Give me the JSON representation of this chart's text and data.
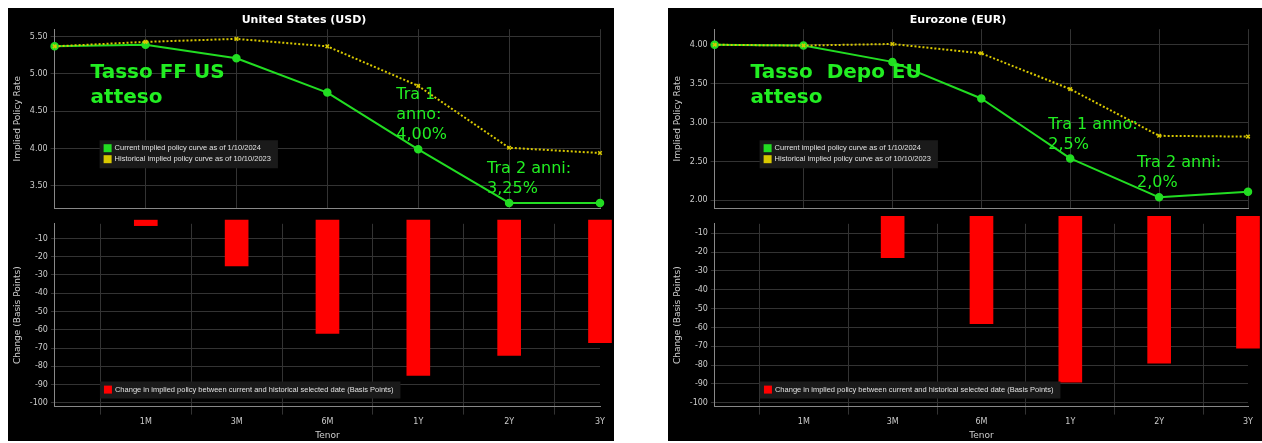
{
  "chart_data": [
    {
      "type": "line",
      "title": "United States (USD)",
      "ylabel": "Implied Policy Rate",
      "categories": [
        null,
        "1M",
        "3M",
        "6M",
        "1Y",
        "2Y",
        "3Y"
      ],
      "series": [
        {
          "name": "Current implied policy curve as of 1/10/2024",
          "color": "#22dd22",
          "marker": "circle",
          "line_style": "solid",
          "values": [
            5.37,
            5.39,
            5.21,
            4.75,
            3.99,
            3.27,
            3.27
          ]
        },
        {
          "name": "Historical implied policy curve as of 10/10/2023",
          "color": "#d8c800",
          "marker": "cross",
          "line_style": "dotted",
          "values": [
            5.37,
            5.43,
            5.47,
            5.37,
            4.84,
            4.01,
            3.94
          ]
        }
      ],
      "ylim": [
        3.2,
        5.6
      ],
      "yticks": [
        {
          "value": 3.5,
          "label": "3.50"
        },
        {
          "value": 4,
          "label": "4.00"
        },
        {
          "value": 4.5,
          "label": "4.50"
        },
        {
          "value": 5,
          "label": "5.00"
        },
        {
          "value": 5.5,
          "label": "5.50"
        }
      ],
      "grid": true,
      "legend": "bottom left",
      "tick_labels": "y",
      "annotations": [
        "Tasso FF US\natteso",
        {
          "text": "Tra 1\nanno:\n4,00%",
          "x": "1Y",
          "y": 3.99
        },
        {
          "text": "Tra 2 anni:\n3,25%",
          "x": "2Y",
          "y": 3.27
        }
      ]
    },
    {
      "type": "bar",
      "xlabel": "Tenor",
      "ylabel": "Change (Basis Points)",
      "categories": [
        null,
        "1M",
        "3M",
        "6M",
        "1Y",
        "2Y",
        "3Y"
      ],
      "series": [
        {
          "name": "Change in implied policy between current and historical selected date (Basis Points)",
          "color": "#ff0000",
          "values": [
            null,
            -3,
            -25,
            -62,
            -85,
            -74,
            -67
          ]
        }
      ],
      "ylim": [
        -102,
        -2
      ],
      "yticks": [
        -100,
        -90,
        -80,
        -70,
        -60,
        -50,
        -40,
        -30,
        -20,
        -10
      ],
      "grid": true,
      "legend": "bottom left"
    },
    {
      "type": "line",
      "title": "Eurozone (EUR)",
      "ylabel": "Implied Policy Rate",
      "categories": [
        null,
        "1M",
        "3M",
        "6M",
        "1Y",
        "2Y",
        "3Y"
      ],
      "series": [
        {
          "name": "Current implied policy curve as of 1/10/2024",
          "color": "#22dd22",
          "marker": "circle",
          "line_style": "solid",
          "values": [
            4.0,
            3.99,
            3.78,
            3.31,
            2.54,
            2.04,
            2.11
          ]
        },
        {
          "name": "Historical implied policy curve as of 10/10/2023",
          "color": "#d8c800",
          "marker": "cross",
          "line_style": "dotted",
          "values": [
            4.0,
            3.99,
            4.01,
            3.89,
            3.43,
            2.83,
            2.82
          ]
        }
      ],
      "ylim": [
        1.9,
        4.2
      ],
      "yticks": [
        {
          "value": 2,
          "label": "2.00"
        },
        {
          "value": 2.5,
          "label": "2.50"
        },
        {
          "value": 3,
          "label": "3.00"
        },
        {
          "value": 3.5,
          "label": "3.50"
        },
        {
          "value": 4,
          "label": "4.00"
        }
      ],
      "grid": true,
      "legend": "bottom left",
      "tick_labels": "y",
      "annotations": [
        "Tasso  Depo EU\natteso",
        {
          "text": "Tra 1 anno:\n2,5%",
          "x": "1Y",
          "y": 2.54
        },
        {
          "text": "Tra 2 anni:\n2,0%",
          "x": "2Y",
          "y": 2.04
        }
      ]
    },
    {
      "type": "bar",
      "xlabel": "Tenor",
      "ylabel": "Change (Basis Points)",
      "categories": [
        null,
        "1M",
        "3M",
        "6M",
        "1Y",
        "2Y",
        "3Y"
      ],
      "series": [
        {
          "name": "Change in implied policy between current and historical selected date (Basis Points)",
          "color": "#ff0000",
          "values": [
            null,
            null,
            -23,
            -58,
            -89,
            -79,
            -71
          ]
        }
      ],
      "ylim": [
        -102,
        -5
      ],
      "yticks": [
        -100,
        -90,
        -80,
        -70,
        -60,
        -50,
        -40,
        -30,
        -20,
        -10
      ],
      "grid": true,
      "legend": "bottom left"
    }
  ]
}
